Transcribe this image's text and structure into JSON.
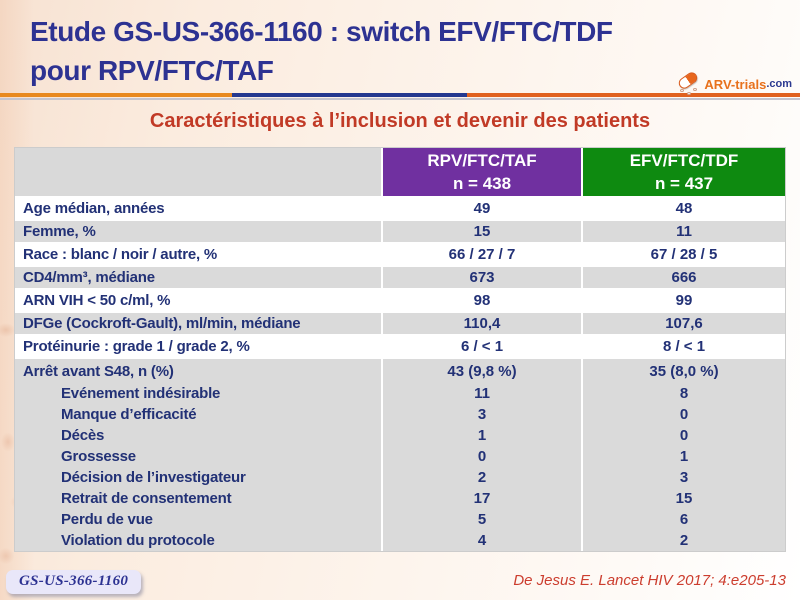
{
  "slide": {
    "title_line1": "Etude GS-US-366-1160 : switch EFV/FTC/TDF",
    "title_line2": "pour RPV/FTC/TAF",
    "subtitle": "Caractéristiques à l’inclusion et devenir des patients",
    "footer_badge": "GS-US-366-1160",
    "reference": "De Jesus E. Lancet HIV 2017; 4:e205-13"
  },
  "logo": {
    "icon": "pill-capsule-icon",
    "text_main": "ARV-trials",
    "text_suffix": ".com"
  },
  "colors": {
    "title": "#2d3292",
    "subtitle": "#c13a26",
    "table_text": "#223176",
    "rpv_header_bg": "#7030a0",
    "efv_header_bg": "#0e8a10",
    "header_label_bg": "#d9d9d9",
    "shade_row_bg": "#dadada",
    "accent_orange": "#e8891f",
    "accent_blue": "#24388f"
  },
  "table": {
    "columns": [
      {
        "line1": "RPV/FTC/TAF",
        "line2": "n = 438"
      },
      {
        "line1": "EFV/FTC/TDF",
        "line2": "n = 437"
      }
    ],
    "rows": [
      {
        "label": "Age médian, années",
        "rpv": "49",
        "efv": "48"
      },
      {
        "label": "Femme, %",
        "rpv": "15",
        "efv": "11"
      },
      {
        "label": "Race : blanc / noir / autre, %",
        "rpv": "66 / 27 / 7",
        "efv": "67 / 28 / 5"
      },
      {
        "label": "CD4/mm³, médiane",
        "rpv": "673",
        "efv": "666"
      },
      {
        "label": "ARN VIH < 50 c/ml, %",
        "rpv": "98",
        "efv": "99"
      },
      {
        "label": "DFGe (Cockroft-Gault), ml/min, médiane",
        "rpv": "110,4",
        "efv": "107,6"
      },
      {
        "label": "Protéinurie : grade 1 / grade 2, %",
        "rpv": "6 / < 1",
        "efv": "8 / < 1"
      }
    ],
    "block_rows": [
      {
        "label": "Arrêt avant S48, n (%)",
        "rpv": "43 (9,8 %)",
        "efv": "35 (8,0 %)"
      },
      {
        "label": "Evénement indésirable",
        "rpv": "11",
        "efv": "8"
      },
      {
        "label": "Manque d’efficacité",
        "rpv": "3",
        "efv": "0"
      },
      {
        "label": "Décès",
        "rpv": "1",
        "efv": "0"
      },
      {
        "label": "Grossesse",
        "rpv": "0",
        "efv": "1"
      },
      {
        "label": "Décision de l’investigateur",
        "rpv": "2",
        "efv": "3"
      },
      {
        "label": "Retrait de consentement",
        "rpv": "17",
        "efv": "15"
      },
      {
        "label": "Perdu de vue",
        "rpv": "5",
        "efv": "6"
      },
      {
        "label": "Violation du protocole",
        "rpv": "4",
        "efv": "2"
      }
    ]
  }
}
